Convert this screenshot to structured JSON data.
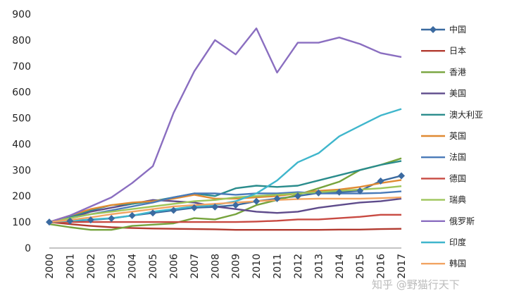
{
  "chart_data": {
    "type": "line",
    "title": "",
    "xlabel": "",
    "ylabel": "",
    "x": [
      "2000",
      "2001",
      "2002",
      "2003",
      "2004",
      "2005",
      "2006",
      "2007",
      "2008",
      "2009",
      "2010",
      "2011",
      "2012",
      "2013",
      "2014",
      "2015",
      "2016",
      "2017"
    ],
    "ylim": [
      0,
      900
    ],
    "yticks": [
      0,
      100,
      200,
      300,
      400,
      500,
      600,
      700,
      800,
      900
    ],
    "grid": false,
    "legend_position": "right",
    "series": [
      {
        "name": "中国",
        "color": "#3b6aa0",
        "marker": "diamond",
        "values": [
          100,
          104,
          108,
          114,
          125,
          135,
          145,
          155,
          158,
          165,
          180,
          190,
          200,
          212,
          215,
          220,
          258,
          278
        ]
      },
      {
        "name": "日本",
        "color": "#b23b30",
        "values": [
          100,
          92,
          85,
          80,
          77,
          75,
          74,
          73,
          72,
          70,
          70,
          70,
          70,
          70,
          71,
          71,
          73,
          74
        ]
      },
      {
        "name": "香港",
        "color": "#76a33c",
        "values": [
          92,
          80,
          70,
          70,
          85,
          90,
          95,
          115,
          110,
          130,
          165,
          185,
          205,
          230,
          255,
          300,
          320,
          345
        ]
      },
      {
        "name": "美国",
        "color": "#5e4b8b",
        "values": [
          100,
          115,
          140,
          155,
          170,
          185,
          180,
          175,
          160,
          150,
          140,
          135,
          140,
          155,
          165,
          175,
          180,
          190
        ]
      },
      {
        "name": "澳大利亚",
        "color": "#2a8c8c",
        "values": [
          100,
          120,
          145,
          165,
          170,
          180,
          195,
          210,
          200,
          230,
          240,
          235,
          240,
          260,
          280,
          300,
          320,
          335
        ]
      },
      {
        "name": "英国",
        "color": "#e08a32",
        "values": [
          100,
          125,
          150,
          165,
          175,
          180,
          190,
          205,
          190,
          190,
          195,
          200,
          210,
          220,
          225,
          235,
          250,
          262
        ]
      },
      {
        "name": "法国",
        "color": "#4a7ab8",
        "values": [
          100,
          115,
          130,
          145,
          160,
          175,
          195,
          210,
          210,
          205,
          210,
          210,
          215,
          210,
          210,
          210,
          212,
          218
        ]
      },
      {
        "name": "德国",
        "color": "#c84a42",
        "values": [
          100,
          100,
          100,
          100,
          100,
          100,
          100,
          100,
          100,
          100,
          102,
          105,
          110,
          110,
          115,
          120,
          128,
          128
        ]
      },
      {
        "name": "瑞典",
        "color": "#9dc55a",
        "values": [
          100,
          115,
          130,
          140,
          150,
          160,
          170,
          180,
          185,
          195,
          200,
          205,
          210,
          215,
          220,
          225,
          230,
          238
        ]
      },
      {
        "name": "俄罗斯",
        "color": "#8a6ec0",
        "values": [
          100,
          125,
          160,
          195,
          250,
          315,
          520,
          680,
          800,
          745,
          845,
          675,
          790,
          790,
          810,
          785,
          750,
          735
        ]
      },
      {
        "name": "印度",
        "color": "#3fb6cc",
        "values": [
          100,
          105,
          110,
          115,
          125,
          140,
          150,
          160,
          165,
          180,
          210,
          260,
          330,
          365,
          430,
          470,
          510,
          535
        ]
      },
      {
        "name": "韩国",
        "color": "#f2a463",
        "values": [
          100,
          108,
          118,
          130,
          140,
          150,
          160,
          165,
          170,
          175,
          180,
          185,
          188,
          190,
          190,
          190,
          192,
          195
        ]
      }
    ]
  },
  "watermark": "知乎 @野猫行天下"
}
